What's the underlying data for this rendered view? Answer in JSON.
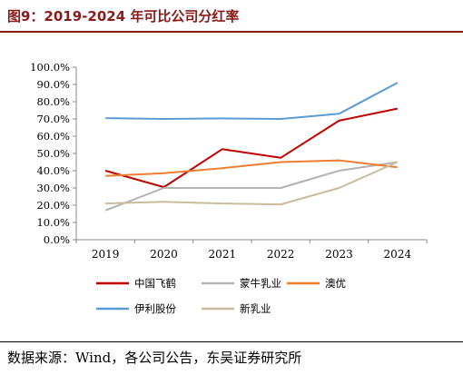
{
  "header": {
    "title": "图9：2019-2024 年可比公司分红率"
  },
  "footer": {
    "source": "数据来源：Wind，各公司公告，东吴证券研究所"
  },
  "chart_data": {
    "type": "line",
    "title": "",
    "xlabel": "",
    "ylabel": "",
    "categories": [
      "2019",
      "2020",
      "2021",
      "2022",
      "2023",
      "2024"
    ],
    "ylim": [
      0,
      100
    ],
    "yticks": [
      "0.0%",
      "10.0%",
      "20.0%",
      "30.0%",
      "40.0%",
      "50.0%",
      "60.0%",
      "70.0%",
      "80.0%",
      "90.0%",
      "100.0%"
    ],
    "grid": false,
    "legend_position": "bottom",
    "series": [
      {
        "name": "中国飞鹤",
        "color": "#c00000",
        "values": [
          40.0,
          30.5,
          52.5,
          47.5,
          69.0,
          76.0
        ]
      },
      {
        "name": "蒙牛乳业",
        "color": "#b3b3b3",
        "values": [
          17.0,
          30.0,
          30.0,
          30.0,
          40.0,
          45.0
        ]
      },
      {
        "name": "澳优",
        "color": "#ed7d31",
        "values": [
          37.0,
          38.5,
          41.5,
          45.0,
          46.0,
          42.0
        ]
      },
      {
        "name": "伊利股份",
        "color": "#5b9bd5",
        "values": [
          70.5,
          70.0,
          70.3,
          70.0,
          73.0,
          91.0
        ]
      },
      {
        "name": "新乳业",
        "color": "#c9bc9c",
        "values": [
          21.0,
          22.0,
          21.0,
          20.5,
          30.0,
          45.0
        ]
      }
    ]
  }
}
